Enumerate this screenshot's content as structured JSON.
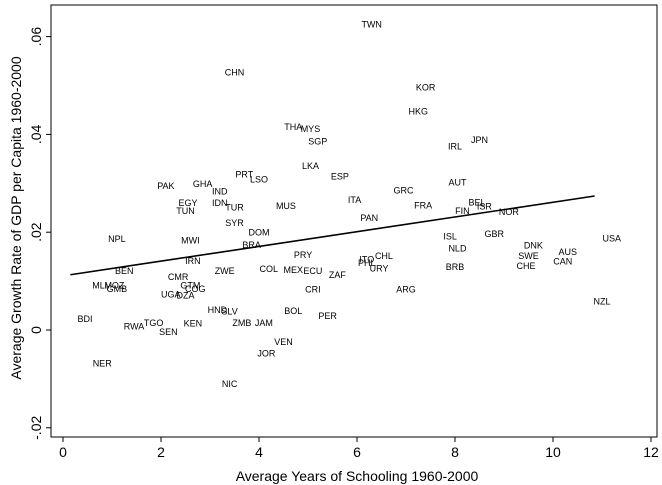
{
  "chart_data": {
    "type": "scatter",
    "xlabel": "Average Years of Schooling 1960-2000",
    "ylabel": "Average Growth Rate of GDP per Capita 1960-2000",
    "xlim": [
      0,
      12
    ],
    "ylim": [
      -0.02,
      0.06
    ],
    "xticks": [
      0,
      2,
      4,
      6,
      8,
      10,
      12
    ],
    "xtick_labels": [
      "0",
      "2",
      "4",
      "6",
      "8",
      "10",
      "12"
    ],
    "yticks": [
      -0.02,
      0,
      0.02,
      0.04,
      0.06
    ],
    "ytick_labels": [
      "-.02",
      "0",
      ".02",
      ".04",
      ".06"
    ],
    "grid": false,
    "marker": "country label",
    "fit_line": {
      "x": [
        0.15,
        10.85
      ],
      "y": [
        0.0113,
        0.0274
      ]
    },
    "points": [
      {
        "label": "TWN",
        "x": 6.3,
        "y": 0.0625
      },
      {
        "label": "CHN",
        "x": 3.5,
        "y": 0.0527
      },
      {
        "label": "KOR",
        "x": 7.4,
        "y": 0.0496
      },
      {
        "label": "HKG",
        "x": 7.25,
        "y": 0.0447
      },
      {
        "label": "JPN",
        "x": 8.5,
        "y": 0.0389
      },
      {
        "label": "IRL",
        "x": 8.0,
        "y": 0.0375
      },
      {
        "label": "THA",
        "x": 4.7,
        "y": 0.0415
      },
      {
        "label": "MYS",
        "x": 5.05,
        "y": 0.0411
      },
      {
        "label": "SGP",
        "x": 5.2,
        "y": 0.0385
      },
      {
        "label": "LKA",
        "x": 5.05,
        "y": 0.0335
      },
      {
        "label": "ESP",
        "x": 5.65,
        "y": 0.0314
      },
      {
        "label": "PRT",
        "x": 3.7,
        "y": 0.0318
      },
      {
        "label": "LSO",
        "x": 4.0,
        "y": 0.0308
      },
      {
        "label": "PAK",
        "x": 2.1,
        "y": 0.0294
      },
      {
        "label": "GHA",
        "x": 2.85,
        "y": 0.0299
      },
      {
        "label": "IND",
        "x": 3.2,
        "y": 0.0283
      },
      {
        "label": "EGY",
        "x": 2.55,
        "y": 0.026
      },
      {
        "label": "IDN",
        "x": 3.2,
        "y": 0.026
      },
      {
        "label": "TUN",
        "x": 2.5,
        "y": 0.0243
      },
      {
        "label": "TUR",
        "x": 3.5,
        "y": 0.0251
      },
      {
        "label": "MUS",
        "x": 4.55,
        "y": 0.0254
      },
      {
        "label": "ITA",
        "x": 5.95,
        "y": 0.0266
      },
      {
        "label": "GRC",
        "x": 6.95,
        "y": 0.0285
      },
      {
        "label": "AUT",
        "x": 8.05,
        "y": 0.0302
      },
      {
        "label": "FRA",
        "x": 7.35,
        "y": 0.0255
      },
      {
        "label": "BEL",
        "x": 8.45,
        "y": 0.0261
      },
      {
        "label": "ISR",
        "x": 8.6,
        "y": 0.0253
      },
      {
        "label": "NOR",
        "x": 9.1,
        "y": 0.0241
      },
      {
        "label": "FIN",
        "x": 8.15,
        "y": 0.0243
      },
      {
        "label": "PAN",
        "x": 6.25,
        "y": 0.0229
      },
      {
        "label": "SYR",
        "x": 3.5,
        "y": 0.0219
      },
      {
        "label": "DOM",
        "x": 4.0,
        "y": 0.0199
      },
      {
        "label": "NPL",
        "x": 1.1,
        "y": 0.0186
      },
      {
        "label": "MWI",
        "x": 2.6,
        "y": 0.0183
      },
      {
        "label": "BRA",
        "x": 3.85,
        "y": 0.0174
      },
      {
        "label": "ISL",
        "x": 7.9,
        "y": 0.0191
      },
      {
        "label": "GBR",
        "x": 8.8,
        "y": 0.0196
      },
      {
        "label": "USA",
        "x": 11.2,
        "y": 0.0187
      },
      {
        "label": "DNK",
        "x": 9.6,
        "y": 0.0173
      },
      {
        "label": "NLD",
        "x": 8.05,
        "y": 0.0167
      },
      {
        "label": "AUS",
        "x": 10.3,
        "y": 0.0159
      },
      {
        "label": "SWE",
        "x": 9.5,
        "y": 0.0151
      },
      {
        "label": "CAN",
        "x": 10.2,
        "y": 0.014
      },
      {
        "label": "CHE",
        "x": 9.45,
        "y": 0.0131
      },
      {
        "label": "PRY",
        "x": 4.9,
        "y": 0.0153
      },
      {
        "label": "CHL",
        "x": 6.55,
        "y": 0.0151
      },
      {
        "label": "ITO",
        "x": 6.2,
        "y": 0.0144
      },
      {
        "label": "PHL",
        "x": 6.2,
        "y": 0.0137
      },
      {
        "label": "URY",
        "x": 6.45,
        "y": 0.0126
      },
      {
        "label": "BRB",
        "x": 8.0,
        "y": 0.0129
      },
      {
        "label": "IRN",
        "x": 2.65,
        "y": 0.0141
      },
      {
        "label": "BEN",
        "x": 1.25,
        "y": 0.0121
      },
      {
        "label": "COL",
        "x": 4.2,
        "y": 0.0125
      },
      {
        "label": "MEX",
        "x": 4.7,
        "y": 0.0123
      },
      {
        "label": "ECU",
        "x": 5.1,
        "y": 0.0121
      },
      {
        "label": "ZWE",
        "x": 3.3,
        "y": 0.0121
      },
      {
        "label": "ZAF",
        "x": 5.6,
        "y": 0.0112
      },
      {
        "label": "CMR",
        "x": 2.35,
        "y": 0.0108
      },
      {
        "label": "MLI",
        "x": 0.75,
        "y": 0.0091
      },
      {
        "label": "MOZ",
        "x": 1.05,
        "y": 0.0091
      },
      {
        "label": "GMB",
        "x": 1.1,
        "y": 0.0084
      },
      {
        "label": "GTM",
        "x": 2.6,
        "y": 0.0091
      },
      {
        "label": "COG",
        "x": 2.7,
        "y": 0.0084
      },
      {
        "label": "UGA",
        "x": 2.2,
        "y": 0.0073
      },
      {
        "label": "DZA",
        "x": 2.5,
        "y": 0.0071
      },
      {
        "label": "CRI",
        "x": 5.1,
        "y": 0.0083
      },
      {
        "label": "ARG",
        "x": 7.0,
        "y": 0.0083
      },
      {
        "label": "HND",
        "x": 3.15,
        "y": 0.0041
      },
      {
        "label": "SLV",
        "x": 3.4,
        "y": 0.0038
      },
      {
        "label": "BOL",
        "x": 4.7,
        "y": 0.0039
      },
      {
        "label": "PER",
        "x": 5.4,
        "y": 0.0029
      },
      {
        "label": "NZL",
        "x": 11.0,
        "y": 0.0058
      },
      {
        "label": "BDI",
        "x": 0.45,
        "y": 0.0023
      },
      {
        "label": "TGO",
        "x": 1.85,
        "y": 0.0014
      },
      {
        "label": "KEN",
        "x": 2.65,
        "y": 0.0013
      },
      {
        "label": "ZMB",
        "x": 3.65,
        "y": 0.0014
      },
      {
        "label": "JAM",
        "x": 4.1,
        "y": 0.0014
      },
      {
        "label": "RWA",
        "x": 1.45,
        "y": 0.0007
      },
      {
        "label": "SEN",
        "x": 2.15,
        "y": -0.0004
      },
      {
        "label": "VEN",
        "x": 4.5,
        "y": -0.0025
      },
      {
        "label": "JOR",
        "x": 4.15,
        "y": -0.0048
      },
      {
        "label": "NER",
        "x": 0.8,
        "y": -0.0068
      },
      {
        "label": "NIC",
        "x": 3.4,
        "y": -0.011
      }
    ]
  }
}
